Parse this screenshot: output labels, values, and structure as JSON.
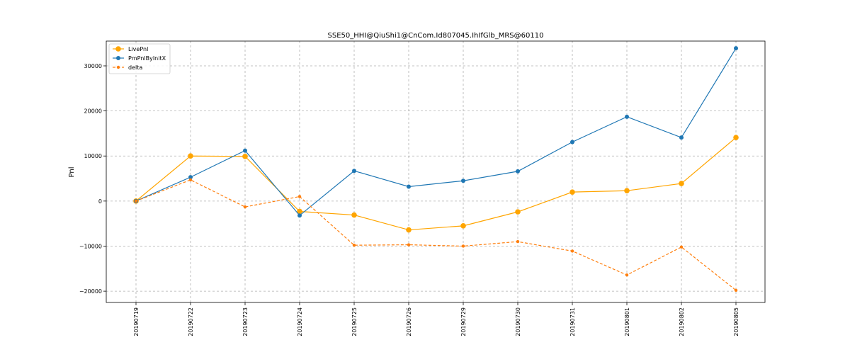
{
  "chart_data": {
    "type": "line",
    "title": "SSE50_HHI@QiuShi1@CnCom.Id807045.IhIfGlb_MRS@60110",
    "xlabel": "",
    "ylabel": "Pnl",
    "categories": [
      "20190719",
      "20190722",
      "20190723",
      "20190724",
      "20190725",
      "20190726",
      "20190729",
      "20190730",
      "20190731",
      "20190801",
      "20190802",
      "20190805"
    ],
    "ylim": [
      -22500,
      35500
    ],
    "yticks": [
      -20000,
      -10000,
      0,
      10000,
      20000,
      30000
    ],
    "ytick_labels": [
      "−20000",
      "−10000",
      "0",
      "10000",
      "20000",
      "30000"
    ],
    "grid": true,
    "legend_position": "upper-left",
    "series": [
      {
        "name": "LivePnl",
        "color": "#ffa500",
        "style": "solid",
        "marker_size": "large",
        "values": [
          0,
          10000,
          9900,
          -2300,
          -3100,
          -6400,
          -5500,
          -2400,
          2000,
          2300,
          3900,
          14100
        ]
      },
      {
        "name": "PmPnlByInitX",
        "color": "#1f77b4",
        "style": "solid",
        "marker_size": "medium",
        "values": [
          0,
          5300,
          11200,
          -3200,
          6700,
          3200,
          4500,
          6600,
          13100,
          18700,
          14100,
          33900
        ]
      },
      {
        "name": "delta",
        "color": "#ff7f0e",
        "style": "dashed",
        "marker_size": "small",
        "values": [
          0,
          4700,
          -1300,
          1000,
          -9800,
          -9700,
          -10000,
          -9000,
          -11100,
          -16400,
          -10200,
          -19800
        ]
      }
    ]
  }
}
